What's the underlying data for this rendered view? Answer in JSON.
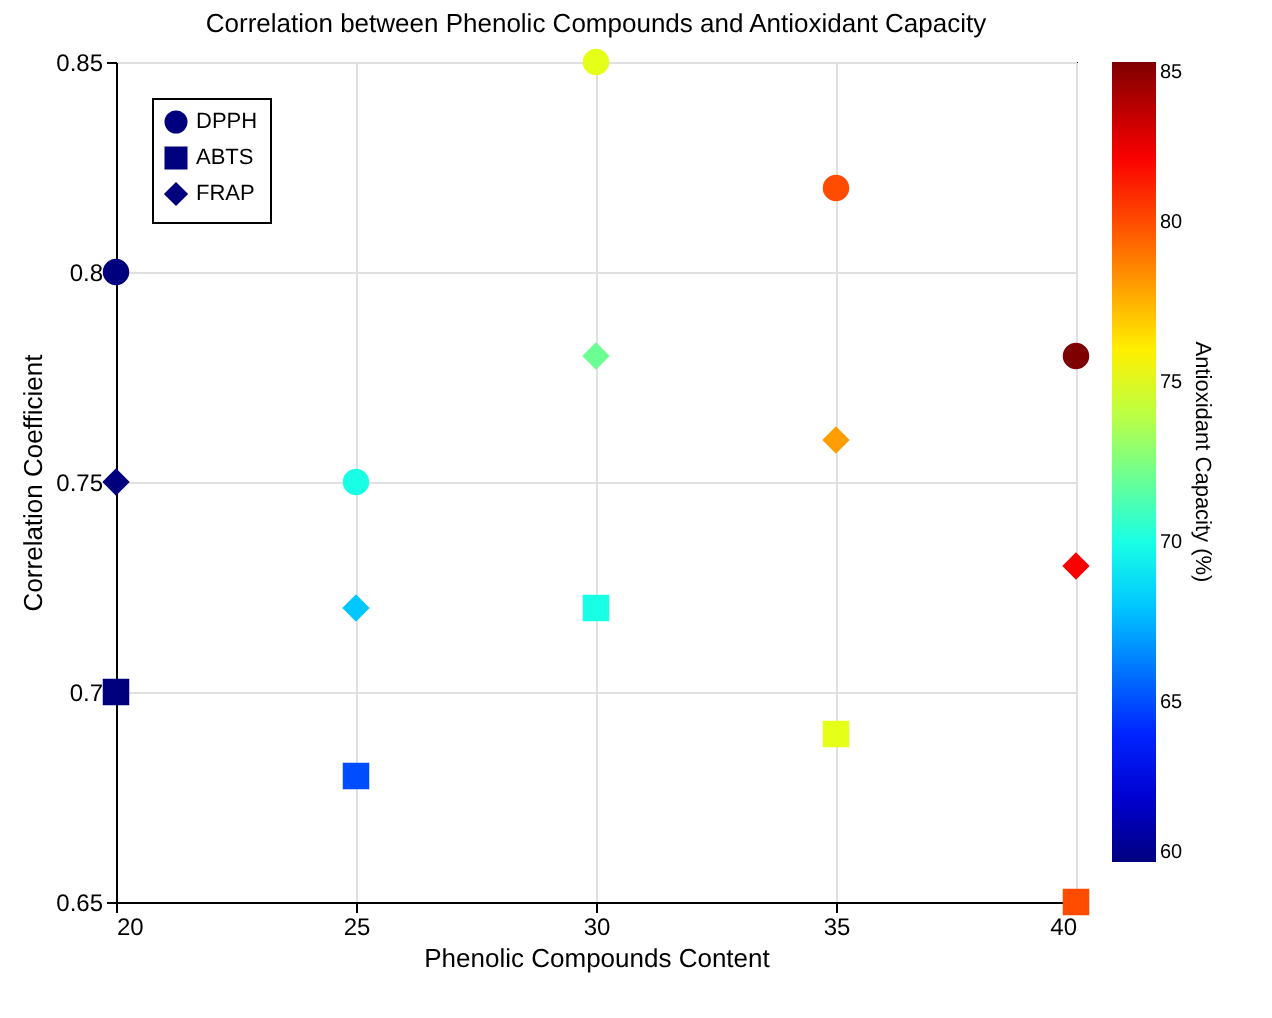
{
  "chart_data": {
    "type": "scatter",
    "title": "Correlation between Phenolic Compounds and Antioxidant Capacity",
    "xlabel": "Phenolic Compounds Content",
    "ylabel": "Correlation Coefficient",
    "clabel": "Antioxidant Capacity (%)",
    "x": [
      20,
      25,
      30,
      35,
      40
    ],
    "series": [
      {
        "name": "DPPH",
        "marker": "circle",
        "values": [
          0.8,
          0.75,
          0.85,
          0.82,
          0.78
        ],
        "colors": [
          "#00007f",
          "#19ffe5",
          "#e5ff19",
          "#ff4c00",
          "#7f0000"
        ],
        "cvalues": [
          60,
          70,
          75,
          80,
          85
        ]
      },
      {
        "name": "ABTS",
        "marker": "square",
        "values": [
          0.7,
          0.68,
          0.72,
          0.69,
          0.65
        ],
        "colors": [
          "#00007f",
          "#004cff",
          "#19ffe5",
          "#e5ff19",
          "#ff4c00"
        ],
        "cvalues": [
          60,
          65,
          70,
          75,
          80
        ]
      },
      {
        "name": "FRAP",
        "marker": "diamond",
        "values": [
          0.75,
          0.72,
          0.78,
          0.76,
          0.73
        ],
        "colors": [
          "#00007f",
          "#00c7ff",
          "#6bff93",
          "#ff9e00",
          "#fa0000"
        ],
        "cvalues": [
          60,
          68,
          72,
          78,
          82
        ]
      }
    ],
    "xlim": [
      20,
      40
    ],
    "xticks": [
      20,
      25,
      30,
      35,
      40
    ],
    "ylim": [
      0.65,
      0.85
    ],
    "yticks": [
      0.65,
      0.7,
      0.75,
      0.8,
      0.85
    ],
    "clim": [
      60,
      85
    ],
    "cticks": [
      60,
      65,
      70,
      75,
      80,
      85
    ],
    "grid": true,
    "legend": "top left"
  }
}
